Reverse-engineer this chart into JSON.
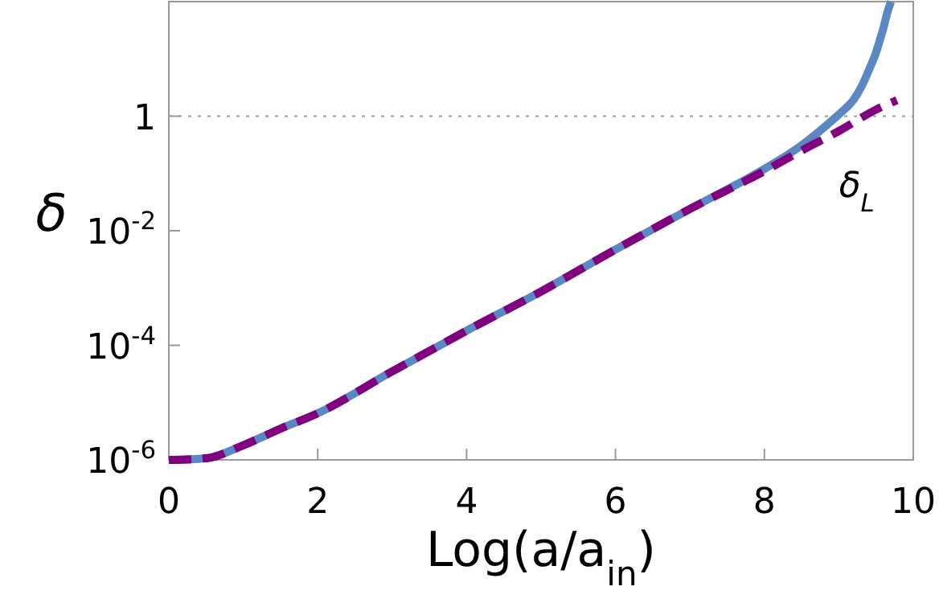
{
  "chart_data": {
    "type": "line",
    "xlabel": "Log(a/a$_{in}$)",
    "ylabel": "δ",
    "log": "y",
    "xlim": [
      0,
      10
    ],
    "xticks": [
      0,
      2,
      4,
      6,
      8,
      10
    ],
    "ylim": [
      1e-06,
      100
    ],
    "yticks": [
      {
        "value": 1e-06,
        "label": "10$^{-6}$"
      },
      {
        "value": 0.0001,
        "label": "10$^{-4}$"
      },
      {
        "value": 0.01,
        "label": "10$^{-2}$"
      },
      1
    ],
    "marker": "none",
    "ref_lines": [
      {
        "axis": "y",
        "value": 1,
        "color": "#999999",
        "line_style": "dotted"
      }
    ],
    "series": [
      {
        "color": "#5b87c5",
        "line_style": "solid",
        "x": [
          0,
          0.5,
          1,
          1.5,
          2,
          3,
          4,
          5,
          6,
          7,
          8,
          8.5,
          9,
          9.1,
          9.2,
          9.3,
          9.4,
          9.5,
          9.55,
          9.6,
          9.65,
          9.7
        ],
        "values": [
          1e-06,
          1.07e-06,
          1.8e-06,
          3.5e-06,
          6.5e-06,
          3.5e-05,
          0.00018,
          0.00087,
          0.0047,
          0.024,
          0.12,
          0.31,
          1.07,
          1.4,
          1.95,
          3.2,
          6.2,
          13,
          21,
          35,
          63,
          100
        ]
      },
      {
        "name": "δ$_{L}$",
        "color": "#800080",
        "line_style": "dashed",
        "x": [
          0,
          0.5,
          1,
          1.5,
          2,
          3,
          4,
          5,
          6,
          7,
          8,
          8.5,
          9,
          9.5,
          9.78
        ],
        "values": [
          1e-06,
          1.07e-06,
          1.8e-06,
          3.5e-06,
          6.5e-06,
          3.5e-05,
          0.00018,
          0.00087,
          0.0047,
          0.024,
          0.11,
          0.25,
          0.55,
          1.3,
          1.9
        ]
      }
    ]
  }
}
